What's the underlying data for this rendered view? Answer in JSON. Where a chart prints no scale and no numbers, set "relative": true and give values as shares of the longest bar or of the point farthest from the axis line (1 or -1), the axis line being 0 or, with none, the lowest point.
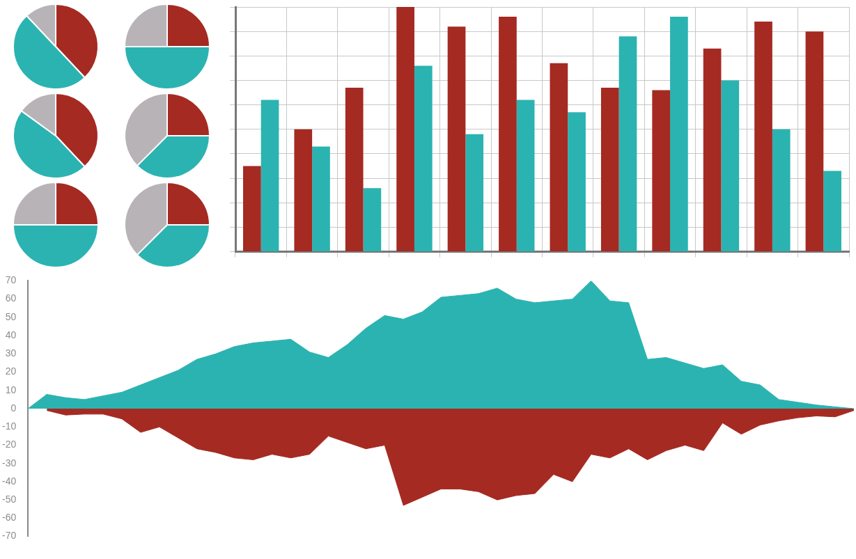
{
  "chart_data": [
    {
      "type": "bar",
      "relative": true,
      "grid": true,
      "legend": false,
      "categories": [
        null,
        null,
        null,
        null,
        null,
        null,
        null,
        null,
        null,
        null,
        null,
        null
      ],
      "series": [
        {
          "color": "#a52a22",
          "values": [
            0.35,
            0.5,
            0.67,
            1,
            0.92,
            0.96,
            0.77,
            0.67,
            0.66,
            0.83,
            0.94,
            0.9
          ]
        },
        {
          "color": "#2bb3b1",
          "values": [
            0.62,
            0.43,
            0.26,
            0.76,
            0.48,
            0.62,
            0.57,
            0.88,
            0.96,
            0.7,
            0.5,
            0.33
          ]
        }
      ]
    },
    {
      "type": "area",
      "legend": false,
      "grid": false,
      "ylim": [
        -70,
        70
      ],
      "yticks": [
        -70,
        -60,
        -50,
        -40,
        -30,
        -20,
        -10,
        0,
        10,
        20,
        30,
        40,
        50,
        60,
        70
      ],
      "categories": [
        null,
        null,
        null,
        null,
        null,
        null,
        null,
        null,
        null,
        null,
        null,
        null,
        null,
        null,
        null,
        null,
        null,
        null,
        null,
        null,
        null,
        null,
        null,
        null,
        null,
        null,
        null,
        null,
        null,
        null,
        null,
        null,
        null,
        null,
        null,
        null,
        null,
        null,
        null,
        null,
        null,
        null,
        null,
        null,
        null
      ],
      "series": [
        {
          "color": "#2bb3b1",
          "values": [
            0,
            7.8,
            6,
            5,
            7,
            9,
            13,
            17,
            21,
            27,
            30,
            34,
            36,
            37,
            38,
            31,
            28,
            35,
            44,
            51,
            49,
            53,
            61,
            62,
            63,
            66,
            60,
            58,
            59,
            60,
            70,
            59,
            58,
            27,
            28,
            25,
            22,
            24,
            15,
            13,
            5,
            3.5,
            2,
            1,
            0
          ]
        },
        {
          "color": "#a52a22",
          "values": [
            null,
            -1,
            -3.5,
            -3,
            -3,
            -5.6,
            -13,
            -10,
            -16,
            -22,
            -24,
            -27,
            -28,
            -25,
            -27,
            -25,
            -15,
            -18.5,
            -22,
            -20,
            -53,
            -48.5,
            -44,
            -44,
            -45.5,
            -50,
            -47.6,
            -46.5,
            -36,
            -40,
            -25,
            -27,
            -22,
            -28,
            -23,
            -20,
            -23,
            -7.8,
            -14,
            -9,
            -6.7,
            -5,
            -4,
            -4.5,
            -1
          ]
        }
      ]
    },
    {
      "type": "pie",
      "categories": [
        null,
        null,
        null
      ],
      "values": [
        38,
        50,
        12
      ],
      "colors": [
        "#a52a22",
        "#2bb3b1",
        "#b8b3b7"
      ]
    },
    {
      "type": "pie",
      "categories": [
        null,
        null,
        null
      ],
      "values": [
        25,
        50,
        25
      ],
      "colors": [
        "#a52a22",
        "#2bb3b1",
        "#b8b3b7"
      ]
    },
    {
      "type": "pie",
      "categories": [
        null,
        null,
        null
      ],
      "values": [
        38,
        47,
        15
      ],
      "colors": [
        "#a52a22",
        "#2bb3b1",
        "#b8b3b7"
      ]
    },
    {
      "type": "pie",
      "categories": [
        null,
        null,
        null
      ],
      "values": [
        25,
        37.5,
        37.5
      ],
      "colors": [
        "#a52a22",
        "#2bb3b1",
        "#b8b3b7"
      ]
    },
    {
      "type": "pie",
      "categories": [
        null,
        null,
        null
      ],
      "values": [
        25,
        50,
        25
      ],
      "colors": [
        "#a52a22",
        "#2bb3b1",
        "#b8b3b7"
      ]
    },
    {
      "type": "pie",
      "categories": [
        null,
        null,
        null
      ],
      "values": [
        25,
        37.5,
        37.5
      ],
      "colors": [
        "#a52a22",
        "#2bb3b1",
        "#b8b3b7"
      ]
    }
  ]
}
